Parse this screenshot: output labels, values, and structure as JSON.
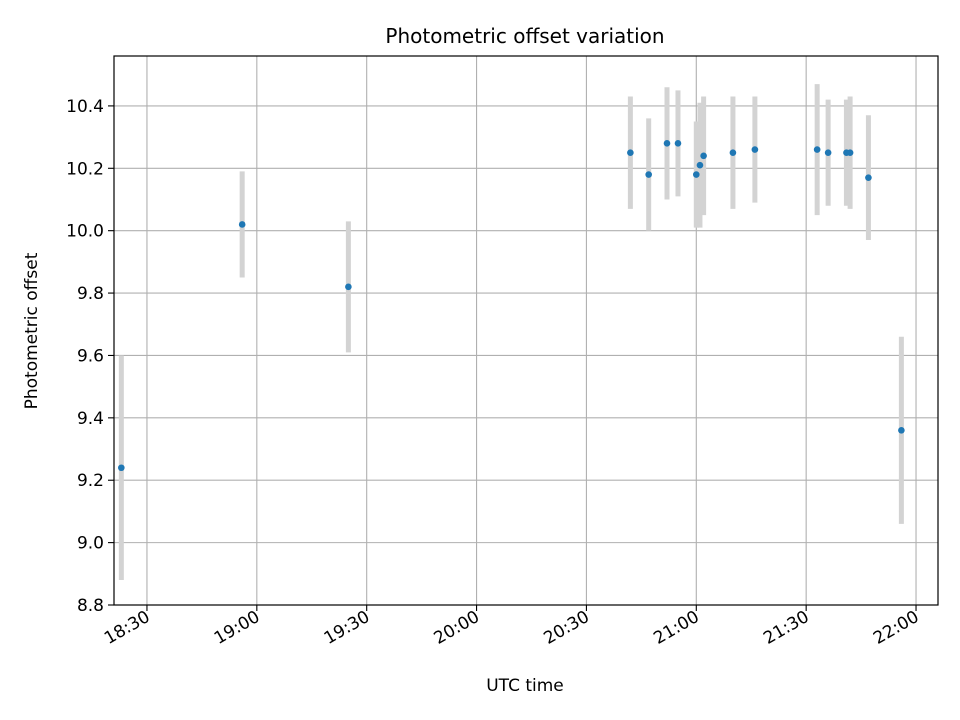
{
  "chart_data": {
    "type": "scatter",
    "title": "Photometric offset variation",
    "xlabel": "UTC time",
    "ylabel": "Photometric offset",
    "x_is_time": true,
    "xlim": [
      "18:21",
      "22:06"
    ],
    "ylim": [
      8.8,
      10.56
    ],
    "x_ticks": [
      "18:30",
      "19:00",
      "19:30",
      "20:00",
      "20:30",
      "21:00",
      "21:30",
      "22:00"
    ],
    "y_ticks": [
      8.8,
      9.0,
      9.2,
      9.4,
      9.6,
      9.8,
      10.0,
      10.2,
      10.4
    ],
    "grid": true,
    "colors": {
      "point": "#1f77b4",
      "errorbar": "#d3d3d3",
      "grid": "#b0b0b0",
      "axes": "#000000"
    },
    "points": [
      {
        "time": "18:23",
        "y": 9.24,
        "err": 0.36
      },
      {
        "time": "18:56",
        "y": 10.02,
        "err": 0.17
      },
      {
        "time": "19:25",
        "y": 9.82,
        "err": 0.21
      },
      {
        "time": "20:42",
        "y": 10.25,
        "err": 0.18
      },
      {
        "time": "20:47",
        "y": 10.18,
        "err": 0.18
      },
      {
        "time": "20:52",
        "y": 10.28,
        "err": 0.18
      },
      {
        "time": "20:55",
        "y": 10.28,
        "err": 0.17
      },
      {
        "time": "21:00",
        "y": 10.18,
        "err": 0.17
      },
      {
        "time": "21:01",
        "y": 10.21,
        "err": 0.2
      },
      {
        "time": "21:02",
        "y": 10.24,
        "err": 0.19
      },
      {
        "time": "21:10",
        "y": 10.25,
        "err": 0.18
      },
      {
        "time": "21:16",
        "y": 10.26,
        "err": 0.17
      },
      {
        "time": "21:33",
        "y": 10.26,
        "err": 0.21
      },
      {
        "time": "21:36",
        "y": 10.25,
        "err": 0.17
      },
      {
        "time": "21:41",
        "y": 10.25,
        "err": 0.17
      },
      {
        "time": "21:42",
        "y": 10.25,
        "err": 0.18
      },
      {
        "time": "21:47",
        "y": 10.17,
        "err": 0.2
      },
      {
        "time": "21:56",
        "y": 9.36,
        "err": 0.3
      }
    ]
  }
}
